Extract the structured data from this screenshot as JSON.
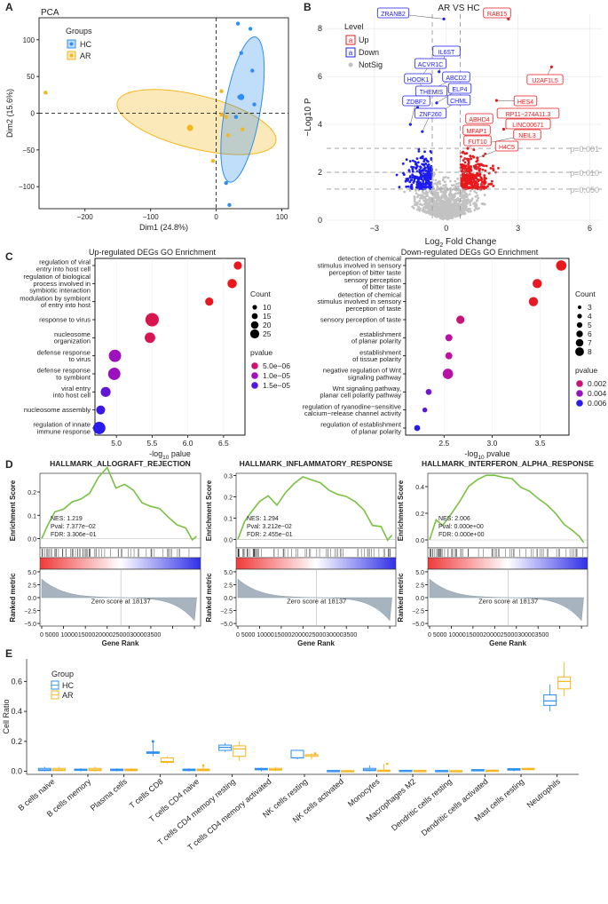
{
  "colors": {
    "hc": "#2e8ff0",
    "ar": "#f5b51c",
    "up": "#e8191c",
    "down": "#1c1cf0",
    "notsig": "#c2c2c2",
    "gsea_line": "#7ac143"
  },
  "panelA": {
    "letter": "A",
    "title": "PCA",
    "legend_title": "Groups",
    "legend_items": [
      "HC",
      "AR"
    ],
    "xlabel": "Dim1 (24.8%)",
    "ylabel": "Dim2 (15.6%)",
    "xticks": [
      "−200",
      "−100",
      "0",
      "100"
    ],
    "yticks": [
      "100",
      "50",
      "0",
      "−50",
      "−100"
    ]
  },
  "panelB": {
    "letter": "B",
    "title": "AR VS HC",
    "legend_title": "Level",
    "legend_items": [
      "Up",
      "Down",
      "NotSig"
    ],
    "xlabel": "Log",
    "xlabel_sub": "2",
    "xlabel_rest": " Fold Change",
    "ylabel": "−Log10 P",
    "xticks": [
      "−3",
      "0",
      "3",
      "6"
    ],
    "yticks": [
      "0",
      "2",
      "4",
      "6",
      "8"
    ],
    "thresholds": [
      "p=0.001",
      "p=0.010",
      "p=0.050"
    ],
    "up_genes": [
      "RAB15",
      "U2AF1L5",
      "HES4",
      "RP11−274A11.3",
      "LINC00671",
      "ABHD4",
      "MFAP1",
      "NEIL3",
      "FUT10",
      "H4C5"
    ],
    "down_genes": [
      "ZRANB2",
      "IL6ST",
      "ACVR1C",
      "ABCD2",
      "HOOK1",
      "ELP4",
      "THEMIS",
      "CHML",
      "ZDBF2",
      "ZNF260"
    ]
  },
  "panelC": {
    "letter": "C",
    "left": {
      "title": "Up-regulated DEGs GO Enrichment",
      "xlabel": "-log",
      "xlabel_sub": "10",
      "xlabel_rest": " palue",
      "terms": [
        "regulation of viral\nentry into host cell",
        "regulation of biological\nprocess involved in\nsymbiotic interaction",
        "modulation by symbiont\nof entry into host",
        "response to virus",
        "nucleosome\norganization",
        "defense response\nto virus",
        "defense response\nto symbiont",
        "viral entry\ninto host cell",
        "nucleosome assembly",
        "regulation of innate\nimmune response"
      ],
      "xticks": [
        "5.0",
        "5.5",
        "6.0",
        "6.5"
      ],
      "count_title": "Count",
      "count_labels": [
        "10",
        "15",
        "20",
        "25"
      ],
      "pvalue_title": "pvalue",
      "pvalue_labels": [
        "5.0e−06",
        "1.0e−05",
        "1.5e−05"
      ]
    },
    "right": {
      "title": "Down-regulated DEGs GO Enrichment",
      "xlabel": "-log",
      "xlabel_sub": "10",
      "xlabel_rest": " pvalue",
      "terms": [
        "detection of chemical\nstimulus involved in sensory\nperception of bitter taste",
        "sensory perception\nof bitter taste",
        "detection of chemical\nstimulus involved in sensory\nperception of taste",
        "sensory perception of taste",
        "establishment\nof planar polarity",
        "establishment\nof tissue polarity",
        "negative regulation of Wnt\nsignaling pathway",
        "Wnt signaling pathway,\nplanar cell polarity pathway",
        "regulation of ryanodine−sensitive\ncalcium−release channel activity",
        "regulation of establishment\nof planar polarity"
      ],
      "xticks": [
        "2.5",
        "3.0",
        "3.5"
      ],
      "count_title": "Count",
      "count_labels": [
        "3",
        "4",
        "5",
        "6",
        "7",
        "8"
      ],
      "pvalue_title": "pvalue",
      "pvalue_labels": [
        "0.002",
        "0.004",
        "0.006"
      ]
    }
  },
  "panelD": {
    "letter": "D",
    "ylabel_top": "Enrichment Score",
    "ylabel_bottom": "Ranked metric",
    "xlabel": "Gene Rank",
    "zero_text": "Zero score at 18137",
    "plots": [
      {
        "title": "HALLMARK_ALLOGRAFT_REJECTION",
        "nes": "NES: 1.219",
        "pval": "Pval: 7.377e−02",
        "fdr": "FDR: 3.306e−01",
        "yticks": [
          "0.2",
          "0.1",
          "0.0"
        ]
      },
      {
        "title": "HALLMARK_INFLAMMATORY_RESPONSE",
        "nes": "NES: 1.294",
        "pval": "Pval: 3.212e−02",
        "fdr": "FDR: 2.455e−01",
        "yticks": [
          "0.3",
          "0.2",
          "0.1",
          "0.0"
        ]
      },
      {
        "title": "HALLMARK_INTERFERON_ALPHA_RESPONSE",
        "nes": "NES: 2.006",
        "pval": "Pval: 0.000e+00",
        "fdr": "FDR: 0.000e+00",
        "yticks": [
          "0.4",
          "0.2",
          "0.0"
        ]
      }
    ],
    "metric_ticks": [
      "5.0",
      "2.5",
      "0.0",
      "−2.5",
      "−5.0"
    ],
    "rank_ticks": "0  5000 10000150002000025000300003500"
  },
  "panelE": {
    "letter": "E",
    "ylabel": "Cell Ratio",
    "legend_title": "Group",
    "legend_items": [
      "HC",
      "AR"
    ],
    "yticks": [
      "0.0",
      "0.2",
      "0.4",
      "0.6"
    ],
    "categories": [
      "B cells naive",
      "B cells memory",
      "Plasma cells",
      "T cells CD8",
      "T cells CD4 naive",
      "T cells CD4 memory resting",
      "T cells CD4 memory activated",
      "NK cells resting",
      "NK cells activated",
      "Monocytes",
      "Macrophages M2",
      "Dendritic cells resting",
      "Dendritic cells activated",
      "Mast cells resting",
      "Neutrophils"
    ]
  },
  "chart_data": [
    {
      "type": "scatter",
      "title": "PCA",
      "xlabel": "Dim1 (24.8%)",
      "ylabel": "Dim2 (15.6%)",
      "xlim": [
        -270,
        110
      ],
      "ylim": [
        -130,
        130
      ],
      "series": [
        {
          "name": "HC",
          "x": [
            33,
            52,
            38,
            55,
            35,
            58,
            30,
            15,
            20
          ],
          "y": [
            122,
            115,
            82,
            58,
            22,
            12,
            -5,
            -95,
            -125
          ]
        },
        {
          "name": "AR",
          "x": [
            -260,
            -40,
            8,
            8,
            15,
            18,
            40,
            -5
          ],
          "y": [
            28,
            -20,
            30,
            -2,
            -5,
            -30,
            -22,
            -65
          ]
        }
      ]
    },
    {
      "type": "scatter",
      "title": "AR VS HC",
      "xlabel": "Log2 Fold Change",
      "ylabel": "−Log10 P",
      "xlim": [
        -5,
        6.5
      ],
      "ylim": [
        0,
        8.6
      ],
      "points": [
        {
          "gene": "ZRANB2",
          "x": -0.1,
          "y": 8.4,
          "level": "Down"
        },
        {
          "gene": "RAB15",
          "x": 2.6,
          "y": 8.4,
          "level": "Up"
        },
        {
          "gene": "IL6ST",
          "x": -0.3,
          "y": 6.2,
          "level": "Down"
        },
        {
          "gene": "ACVR1C",
          "x": -1.1,
          "y": 5.9,
          "level": "Down"
        },
        {
          "gene": "ABCD2",
          "x": -0.5,
          "y": 5.5,
          "level": "Down"
        },
        {
          "gene": "HOOK1",
          "x": -0.9,
          "y": 5.3,
          "level": "Down"
        },
        {
          "gene": "ELP4",
          "x": -0.4,
          "y": 4.9,
          "level": "Down"
        },
        {
          "gene": "THEMIS",
          "x": -1.2,
          "y": 4.7,
          "level": "Down"
        },
        {
          "gene": "CHML",
          "x": -0.6,
          "y": 4.3,
          "level": "Down"
        },
        {
          "gene": "ZDBF2",
          "x": -1.5,
          "y": 4.0,
          "level": "Down"
        },
        {
          "gene": "ZNF260",
          "x": -1.0,
          "y": 3.7,
          "level": "Down"
        },
        {
          "gene": "U2AF1L5",
          "x": 4.4,
          "y": 6.4,
          "level": "Up"
        },
        {
          "gene": "HES4",
          "x": 2.1,
          "y": 5.0,
          "level": "Up"
        },
        {
          "gene": "RP11−274A11.3",
          "x": 2.2,
          "y": 4.4,
          "level": "Up"
        },
        {
          "gene": "LINC00671",
          "x": 2.4,
          "y": 3.8,
          "level": "Up"
        },
        {
          "gene": "ABHD4",
          "x": 1.1,
          "y": 4.1,
          "level": "Up"
        },
        {
          "gene": "MFAP1",
          "x": 0.8,
          "y": 3.6,
          "level": "Up"
        },
        {
          "gene": "NEIL3",
          "x": 1.6,
          "y": 3.2,
          "level": "Up"
        },
        {
          "gene": "FUT10",
          "x": 0.9,
          "y": 3.0,
          "level": "Up"
        },
        {
          "gene": "H4C5",
          "x": 1.3,
          "y": 2.6,
          "level": "Up"
        }
      ],
      "thresholds": [
        {
          "label": "p=0.001",
          "y": 3.0
        },
        {
          "label": "p=0.010",
          "y": 2.0
        },
        {
          "label": "p=0.050",
          "y": 1.3
        }
      ],
      "fc_cutoffs": [
        -0.585,
        0.585
      ]
    },
    {
      "type": "scatter",
      "title": "Up-regulated DEGs GO Enrichment",
      "xlabel": "-log10 palue",
      "xlim": [
        4.7,
        6.8
      ],
      "terms": [
        "regulation of viral entry into host cell",
        "regulation of biological process involved in symbiotic interaction",
        "modulation by symbiont of entry into host",
        "response to virus",
        "nucleosome organization",
        "defense response to virus",
        "defense response to symbiont",
        "viral entry into host cell",
        "nucleosome assembly",
        "regulation of innate immune response"
      ],
      "x": [
        6.7,
        6.62,
        6.3,
        5.5,
        5.47,
        4.98,
        4.97,
        4.85,
        4.78,
        4.76
      ],
      "count": [
        6,
        9,
        6,
        25,
        13,
        20,
        20,
        11,
        8,
        20
      ],
      "pvalue": [
        2e-07,
        2.5e-07,
        5e-07,
        3.2e-06,
        3.4e-06,
        1.05e-05,
        1.07e-05,
        1.4e-05,
        1.65e-05,
        1.75e-05
      ]
    },
    {
      "type": "scatter",
      "title": "Down-regulated DEGs GO Enrichment",
      "xlabel": "-log10 pvalue",
      "xlim": [
        2.1,
        3.8
      ],
      "terms": [
        "detection of chemical stimulus involved in sensory perception of bitter taste",
        "sensory perception of bitter taste",
        "detection of chemical stimulus involved in sensory perception of taste",
        "sensory perception of taste",
        "establishment of planar polarity",
        "establishment of tissue polarity",
        "negative regulation of Wnt signaling pathway",
        "Wnt signaling pathway, planar cell polarity pathway",
        "regulation of ryanodine−sensitive calcium−release channel activity",
        "regulation of establishment of planar polarity"
      ],
      "x": [
        3.72,
        3.47,
        3.43,
        2.67,
        2.55,
        2.55,
        2.54,
        2.34,
        2.3,
        2.22
      ],
      "count": [
        7,
        6,
        6,
        5,
        4,
        4,
        7,
        3,
        2,
        3
      ],
      "pvalue": [
        0.0002,
        0.00035,
        0.0004,
        0.002,
        0.0028,
        0.0028,
        0.0029,
        0.0045,
        0.005,
        0.006
      ]
    },
    {
      "type": "line",
      "title": "HALLMARK_ALLOGRAFT_REJECTION",
      "xlabel": "Gene Rank",
      "ylabel": "Enrichment Score",
      "xlim": [
        0,
        36000
      ],
      "x": [
        0,
        1500,
        3000,
        5000,
        7000,
        9000,
        11000,
        13000,
        15000,
        17000,
        19000,
        21000,
        23000,
        25000,
        27000,
        29000,
        31000,
        33000,
        34500,
        35500
      ],
      "y": [
        0.0,
        0.06,
        0.12,
        0.13,
        0.15,
        0.17,
        0.2,
        0.26,
        0.3,
        0.22,
        0.23,
        0.2,
        0.16,
        0.13,
        0.12,
        0.1,
        0.06,
        0.04,
        0.0,
        0.01
      ]
    },
    {
      "type": "line",
      "title": "HALLMARK_INFLAMMATORY_RESPONSE",
      "xlabel": "Gene Rank",
      "ylabel": "Enrichment Score",
      "xlim": [
        0,
        36000
      ],
      "x": [
        0,
        1500,
        3000,
        5000,
        7000,
        9000,
        11000,
        13000,
        15000,
        17000,
        19000,
        21000,
        23000,
        25000,
        27000,
        29000,
        31000,
        33000,
        34500,
        35500
      ],
      "y": [
        0.0,
        0.08,
        0.12,
        0.18,
        0.2,
        0.17,
        0.22,
        0.27,
        0.3,
        0.28,
        0.26,
        0.24,
        0.22,
        0.2,
        0.17,
        0.14,
        0.06,
        0.06,
        0.0,
        0.02
      ]
    },
    {
      "type": "line",
      "title": "HALLMARK_INTERFERON_ALPHA_RESPONSE",
      "xlabel": "Gene Rank",
      "ylabel": "Enrichment Score",
      "xlim": [
        0,
        36000
      ],
      "x": [
        0,
        1500,
        3000,
        5000,
        7000,
        9000,
        11000,
        13000,
        15000,
        17000,
        19000,
        21000,
        23000,
        25000,
        27000,
        29000,
        31000,
        33000,
        34500,
        35500
      ],
      "y": [
        0.0,
        0.15,
        0.1,
        0.2,
        0.3,
        0.4,
        0.45,
        0.48,
        0.49,
        0.47,
        0.45,
        0.4,
        0.36,
        0.32,
        0.27,
        0.2,
        0.12,
        0.06,
        0.02,
        -0.02
      ]
    },
    {
      "type": "box",
      "title": "",
      "xlabel": "",
      "ylabel": "Cell Ratio",
      "ylim": [
        -0.02,
        0.75
      ],
      "categories": [
        "B cells naive",
        "B cells memory",
        "Plasma cells",
        "T cells CD8",
        "T cells CD4 naive",
        "T cells CD4 memory resting",
        "T cells CD4 memory activated",
        "NK cells resting",
        "NK cells activated",
        "Monocytes",
        "Macrophages M2",
        "Dendritic cells resting",
        "Dendritic cells activated",
        "Mast cells resting",
        "Neutrophils"
      ],
      "series": [
        {
          "name": "HC",
          "min": [
            0,
            0,
            0,
            0.1,
            0,
            0.13,
            0,
            0.08,
            0,
            0,
            0,
            0,
            0,
            0,
            0.4
          ],
          "q1": [
            0.005,
            0.008,
            0.005,
            0.12,
            0.005,
            0.14,
            0.01,
            0.09,
            0.002,
            0.005,
            0.002,
            0.002,
            0.005,
            0.008,
            0.44
          ],
          "median": [
            0.01,
            0.012,
            0.01,
            0.125,
            0.01,
            0.16,
            0.015,
            0.09,
            0.004,
            0.01,
            0.005,
            0.004,
            0.008,
            0.012,
            0.47
          ],
          "q3": [
            0.02,
            0.015,
            0.015,
            0.13,
            0.015,
            0.175,
            0.02,
            0.14,
            0.006,
            0.02,
            0.007,
            0.006,
            0.012,
            0.018,
            0.51
          ],
          "max": [
            0.03,
            0.02,
            0.02,
            0.2,
            0.02,
            0.19,
            0.025,
            0.14,
            0.008,
            0.04,
            0.01,
            0.008,
            0.015,
            0.02,
            0.58
          ]
        },
        {
          "name": "AR",
          "min": [
            0,
            0,
            0,
            0.05,
            0,
            0.07,
            0,
            0.08,
            0,
            0,
            0,
            0,
            0,
            0.01,
            0.5
          ],
          "q1": [
            0.005,
            0.005,
            0.005,
            0.06,
            0.005,
            0.1,
            0.008,
            0.1,
            0.001,
            0.002,
            0.002,
            0.002,
            0.003,
            0.012,
            0.55
          ],
          "median": [
            0.01,
            0.01,
            0.01,
            0.065,
            0.01,
            0.15,
            0.012,
            0.11,
            0.003,
            0.005,
            0.004,
            0.003,
            0.005,
            0.015,
            0.6
          ],
          "q3": [
            0.02,
            0.02,
            0.015,
            0.09,
            0.015,
            0.17,
            0.02,
            0.11,
            0.005,
            0.008,
            0.006,
            0.005,
            0.008,
            0.02,
            0.63
          ],
          "max": [
            0.03,
            0.03,
            0.02,
            0.1,
            0.04,
            0.2,
            0.03,
            0.12,
            0.007,
            0.05,
            0.01,
            0.007,
            0.01,
            0.025,
            0.73
          ]
        }
      ]
    }
  ]
}
